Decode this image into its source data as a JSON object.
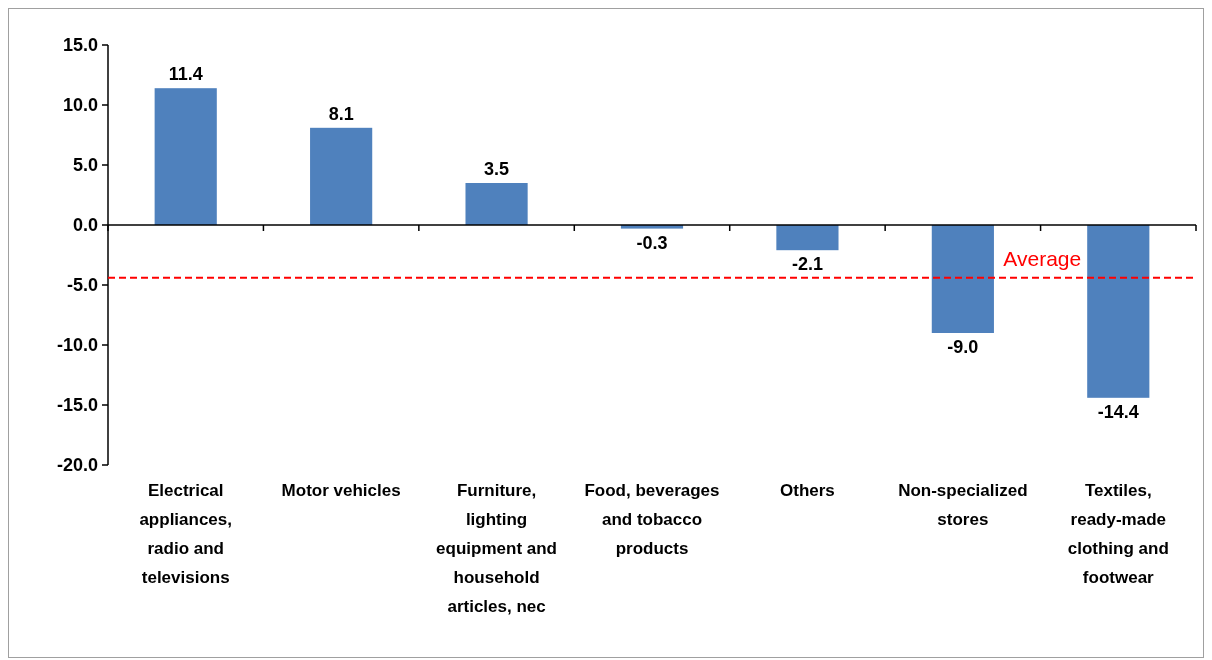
{
  "chart_data": {
    "type": "bar",
    "categories": [
      "Electrical appliances, radio and televisions",
      "Motor vehicles",
      "Furniture, lighting equipment and household articles, nec",
      "Food, beverages and tobacco products",
      "Others",
      "Non-specialized stores",
      "Textiles, ready-made clothing and footwear"
    ],
    "values": [
      11.4,
      8.1,
      3.5,
      -0.3,
      -2.1,
      -9.0,
      -14.4
    ],
    "color": "#4f81bd",
    "value_labels": [
      "11.4",
      "8.1",
      "3.5",
      "-0.3",
      "-2.1",
      "-9.0",
      "-14.4"
    ],
    "ylim": [
      -20,
      15
    ],
    "yticks": [
      {
        "value": -20,
        "label": "-20.0"
      },
      {
        "value": -15,
        "label": "-15.0"
      },
      {
        "value": -10,
        "label": "-10.0"
      },
      {
        "value": -5,
        "label": "-5.0"
      },
      {
        "value": 0,
        "label": "0.0"
      },
      {
        "value": 5,
        "label": "5.0"
      },
      {
        "value": 10,
        "label": "10.0"
      },
      {
        "value": 15,
        "label": "15.0"
      }
    ],
    "ref_lines": [
      {
        "axis": "y",
        "value": -4.4,
        "label": "Average",
        "color": "#ff0000",
        "line_style": "dashed"
      }
    ],
    "marker": "none"
  }
}
